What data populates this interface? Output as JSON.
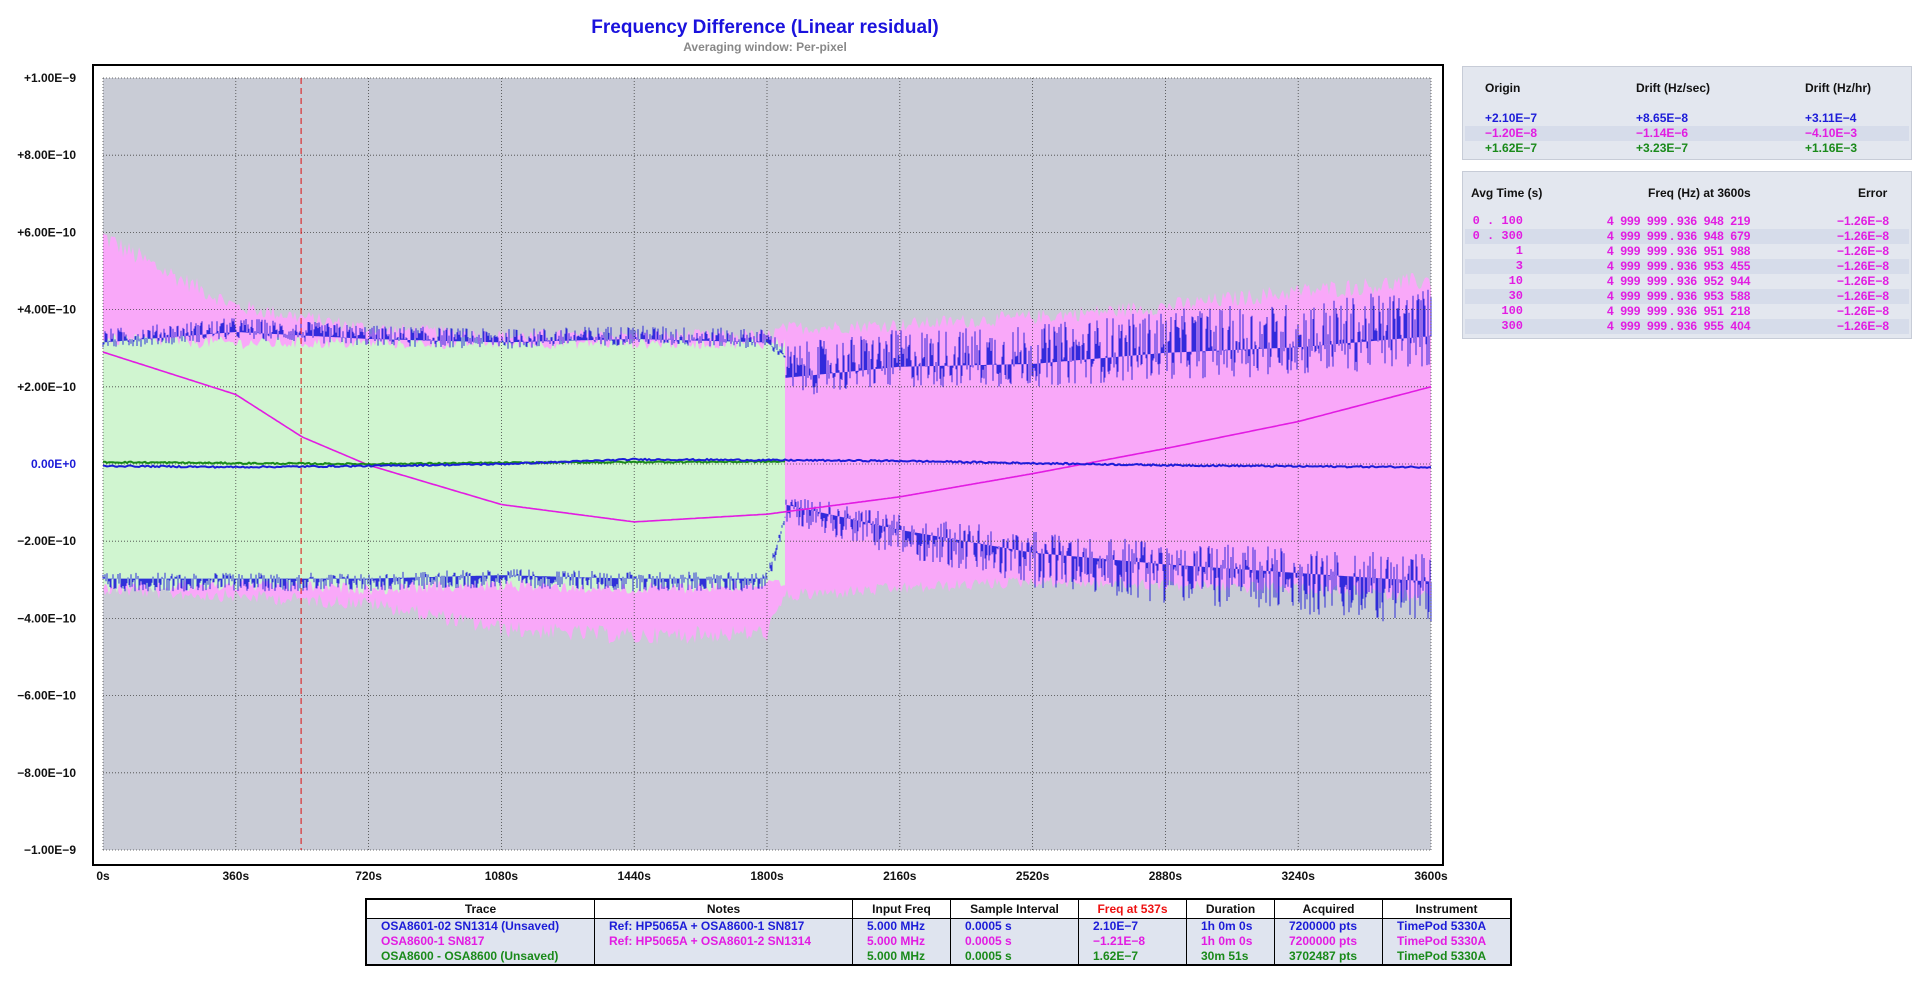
{
  "chart_data": {
    "type": "line",
    "title": "Frequency Difference (Linear residual)",
    "subtitle": "Averaging window: Per-pixel",
    "xlim": [
      0,
      3600
    ],
    "ylim": [
      -1e-09,
      1e-09
    ],
    "x_ticks": [
      "0s",
      "360s",
      "720s",
      "1080s",
      "1440s",
      "1800s",
      "2160s",
      "2520s",
      "2880s",
      "3240s",
      "3600s"
    ],
    "y_ticks": [
      "+1.00E−9",
      "+8.00E−10",
      "+6.00E−10",
      "+4.00E−10",
      "+2.00E−10",
      "0.00E+0",
      "−2.00E−10",
      "−4.00E−10",
      "−6.00E−10",
      "−8.00E−10",
      "−1.00E−9"
    ],
    "grid": true,
    "marker_x": 537,
    "series": [
      {
        "name": "OSA8601-02 SN1314 (Unsaved)",
        "color": "#1c1cd8",
        "x": [
          0,
          360,
          720,
          1080,
          1440,
          1800,
          2160,
          2520,
          2880,
          3240,
          3600
        ],
        "y": [
          -5e-12,
          -8e-12,
          -5e-12,
          0,
          1.2e-11,
          1e-11,
          8e-12,
          2e-12,
          -3e-12,
          -6e-12,
          -8e-12
        ],
        "envelope": {
          "x": [
            0,
            360,
            720,
            1080,
            1440,
            1800,
            1850,
            2160,
            2520,
            2880,
            3240,
            3600
          ],
          "upper": [
            3.5e-10,
            3.8e-10,
            3.6e-10,
            3.5e-10,
            3.6e-10,
            3.5e-10,
            3.1e-10,
            3.5e-10,
            3.6e-10,
            4e-10,
            4.2e-10,
            4.6e-10
          ],
          "lower": [
            -3.3e-10,
            -3.3e-10,
            -3.3e-10,
            -3.2e-10,
            -3.3e-10,
            -3.3e-10,
            -1.5e-10,
            -2.4e-10,
            -3.2e-10,
            -3.6e-10,
            -3.9e-10,
            -4.2e-10
          ]
        }
      },
      {
        "name": "OSA8600-1 SN817",
        "color": "#e21ce2",
        "x": [
          0,
          360,
          540,
          720,
          1080,
          1440,
          1800,
          2160,
          2520,
          2880,
          3240,
          3600
        ],
        "y": [
          2.9e-10,
          1.8e-10,
          7e-11,
          -3e-12,
          -1.05e-10,
          -1.5e-10,
          -1.3e-10,
          -8.5e-11,
          -2.5e-11,
          4e-11,
          1.1e-10,
          2e-10
        ],
        "envelope": {
          "x": [
            0,
            120,
            360,
            720,
            1080,
            1440,
            1800,
            1850,
            2160,
            2520,
            2880,
            3240,
            3600
          ],
          "upper": [
            6.2e-10,
            5.5e-10,
            4.3e-10,
            3.7e-10,
            3.5e-10,
            3.5e-10,
            3.5e-10,
            3.7e-10,
            3.8e-10,
            4e-10,
            4.3e-10,
            4.7e-10,
            5e-10
          ],
          "lower": [
            -3.4e-10,
            -3.5e-10,
            -3.6e-10,
            -3.8e-10,
            -4.5e-10,
            -4.7e-10,
            -4.6e-10,
            -3.6e-10,
            -3.4e-10,
            -3.2e-10,
            -3.3e-10,
            -3.4e-10,
            -3.6e-10
          ]
        }
      },
      {
        "name": "OSA8600 - OSA8600 (Unsaved)",
        "color": "#1a8a1a",
        "x": [
          0,
          360,
          720,
          1080,
          1440,
          1800,
          1851
        ],
        "y": [
          5e-12,
          2e-12,
          0,
          3e-12,
          5e-12,
          6e-12,
          6e-12
        ],
        "envelope": {
          "x": [
            0,
            360,
            720,
            1080,
            1440,
            1800,
            1851
          ],
          "upper": [
            3.4e-10,
            3.3e-10,
            3.3e-10,
            3.3e-10,
            3.3e-10,
            3.3e-10,
            3.3e-10
          ],
          "lower": [
            -3.4e-10,
            -3.3e-10,
            -3.4e-10,
            -3.3e-10,
            -3.4e-10,
            -3.3e-10,
            -3.3e-10
          ]
        }
      }
    ]
  },
  "drift_panel": {
    "headers": [
      "Origin",
      "Drift (Hz/sec)",
      "Drift (Hz/hr)"
    ],
    "rows": [
      {
        "origin": "+2.10E−7",
        "hz_sec": "+8.65E−8",
        "hz_hr": "+3.11E−4",
        "color": "#1c1cd8"
      },
      {
        "origin": "−1.20E−8",
        "hz_sec": "−1.14E−6",
        "hz_hr": "−4.10E−3",
        "color": "#e21ce2"
      },
      {
        "origin": "+1.62E−7",
        "hz_sec": "+3.23E−7",
        "hz_hr": "+1.16E−3",
        "color": "#1a8a1a"
      }
    ]
  },
  "avg_panel": {
    "headers": [
      "Avg Time (s)",
      "Freq (Hz) at 3600s",
      "Error"
    ],
    "color": "#e21ce2",
    "rows": [
      {
        "avg": "0 . 100",
        "freq": "4  999  999 . 936  948  219",
        "err": "−1.26E−8"
      },
      {
        "avg": "0 . 300",
        "freq": "4  999  999 . 936  948  679",
        "err": "−1.26E−8"
      },
      {
        "avg": "1",
        "freq": "4  999  999 . 936  951  988",
        "err": "−1.26E−8"
      },
      {
        "avg": "3",
        "freq": "4  999  999 . 936  953  455",
        "err": "−1.26E−8"
      },
      {
        "avg": "10",
        "freq": "4  999  999 . 936  952  944",
        "err": "−1.26E−8"
      },
      {
        "avg": "30",
        "freq": "4  999  999 . 936  953  588",
        "err": "−1.26E−8"
      },
      {
        "avg": "100",
        "freq": "4  999  999 . 936  951  218",
        "err": "−1.26E−8"
      },
      {
        "avg": "300",
        "freq": "4  999  999 . 936  955  404",
        "err": "−1.26E−8"
      }
    ]
  },
  "trace_table": {
    "headers": [
      "Trace",
      "Notes",
      "Input Freq",
      "Sample Interval",
      "Freq at 537s",
      "Duration",
      "Acquired",
      "Instrument"
    ],
    "highlight_color": "#ee1111",
    "rows": [
      {
        "color": "#1c1cd8",
        "cells": [
          "OSA8601-02  SN1314 (Unsaved)",
          "Ref: HP5065A + OSA8600-1 SN817",
          "5.000 MHz",
          "0.0005 s",
          "2.10E−7",
          "1h 0m 0s",
          "7200000 pts",
          "TimePod 5330A"
        ]
      },
      {
        "color": "#e21ce2",
        "cells": [
          "OSA8600-1 SN817",
          "Ref: HP5065A + OSA8601-2 SN1314",
          "5.000 MHz",
          "0.0005 s",
          "−1.21E−8",
          "1h 0m 0s",
          "7200000 pts",
          "TimePod 5330A"
        ]
      },
      {
        "color": "#1a8a1a",
        "cells": [
          "OSA8600 - OSA8600 (Unsaved)",
          "",
          "5.000 MHz",
          "0.0005 s",
          "1.62E−7",
          "30m 51s",
          "3702487 pts",
          "TimePod 5330A"
        ]
      }
    ]
  }
}
